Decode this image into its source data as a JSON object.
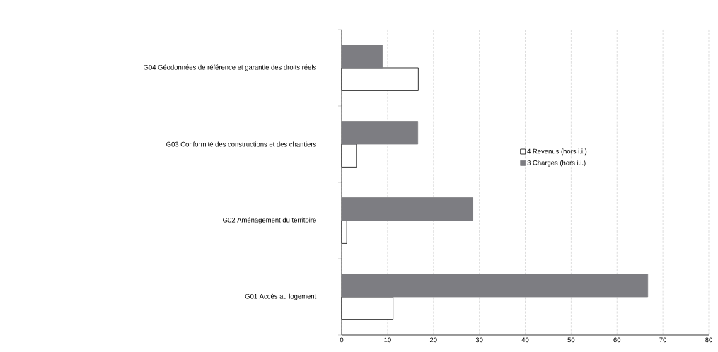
{
  "chart_data": {
    "type": "bar",
    "orientation": "horizontal",
    "categories": [
      "G04 Géodonnées de référence et garantie des droits réels",
      "G03 Conformité des constructions et des chantiers",
      "G02 Aménagement du territoire",
      "G01 Accès au logement"
    ],
    "series": [
      {
        "name": "4 Revenus (hors i.i.)",
        "color": "#ffffff",
        "values": [
          16.7,
          3.2,
          1.1,
          11.2
        ]
      },
      {
        "name": "3 Charges (hors i.i.)",
        "color": "#7d7d82",
        "values": [
          8.9,
          16.6,
          28.6,
          66.7
        ]
      }
    ],
    "xlim": [
      0,
      80
    ],
    "xticks": [
      0,
      10,
      20,
      30,
      40,
      50,
      60,
      70,
      80
    ],
    "grid": "x",
    "legend": "right"
  }
}
